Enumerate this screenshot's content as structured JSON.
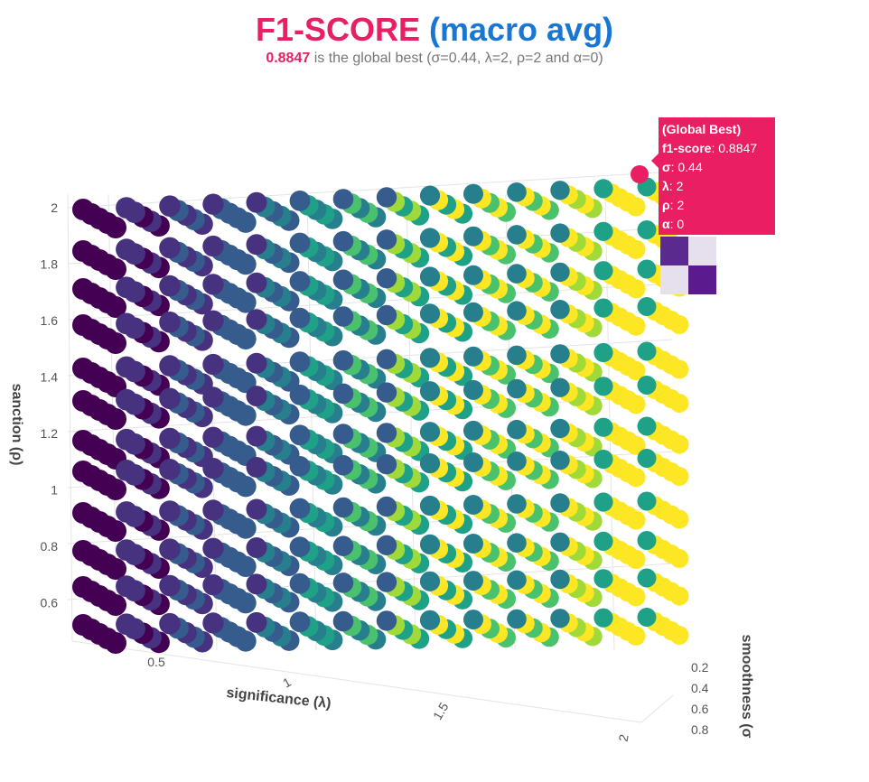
{
  "title": {
    "part1": "F1-SCORE",
    "part2": "(macro avg)"
  },
  "subtitle": {
    "best_value": "0.8847",
    "text": "is the global best (σ=0.44, λ=2, ρ=2 and α=0)"
  },
  "tooltip": {
    "header": "(Global Best)",
    "rows": [
      {
        "key": "f1-score",
        "value": "0.8847"
      },
      {
        "key": "σ",
        "value": "0.44"
      },
      {
        "key": "λ",
        "value": "2"
      },
      {
        "key": "ρ",
        "value": "2"
      },
      {
        "key": "α",
        "value": "0"
      }
    ],
    "matrix_colors": [
      "#5b2a8e",
      "#e6e0ee",
      "#e6e0ee",
      "#5b1a8e"
    ]
  },
  "colors": {
    "accent_pink": "#e91e63",
    "accent_blue": "#1976d2",
    "viridis": [
      "#440154",
      "#46327e",
      "#365c8d",
      "#277f8e",
      "#1fa187",
      "#4ac16d",
      "#a0da39",
      "#fde725"
    ]
  },
  "chart_data": {
    "type": "scatter3d",
    "axes": {
      "y": {
        "label": "sanction (ρ)",
        "ticks": [
          "2",
          "1.8",
          "1.6",
          "1.4",
          "1.2",
          "1",
          "0.8",
          "0.6"
        ]
      },
      "x": {
        "label": "significance (λ)",
        "ticks": [
          "0.5",
          "1",
          "1.5",
          "2"
        ]
      },
      "z": {
        "label": "smoothness (σ",
        "ticks": [
          "0.2",
          "0.4",
          "0.6",
          "0.8"
        ]
      }
    },
    "global_best": {
      "f1_score": 0.8847,
      "sigma": 0.44,
      "lambda": 2,
      "rho": 2,
      "alpha": 0
    },
    "colorscale": "viridis",
    "grid": true
  }
}
